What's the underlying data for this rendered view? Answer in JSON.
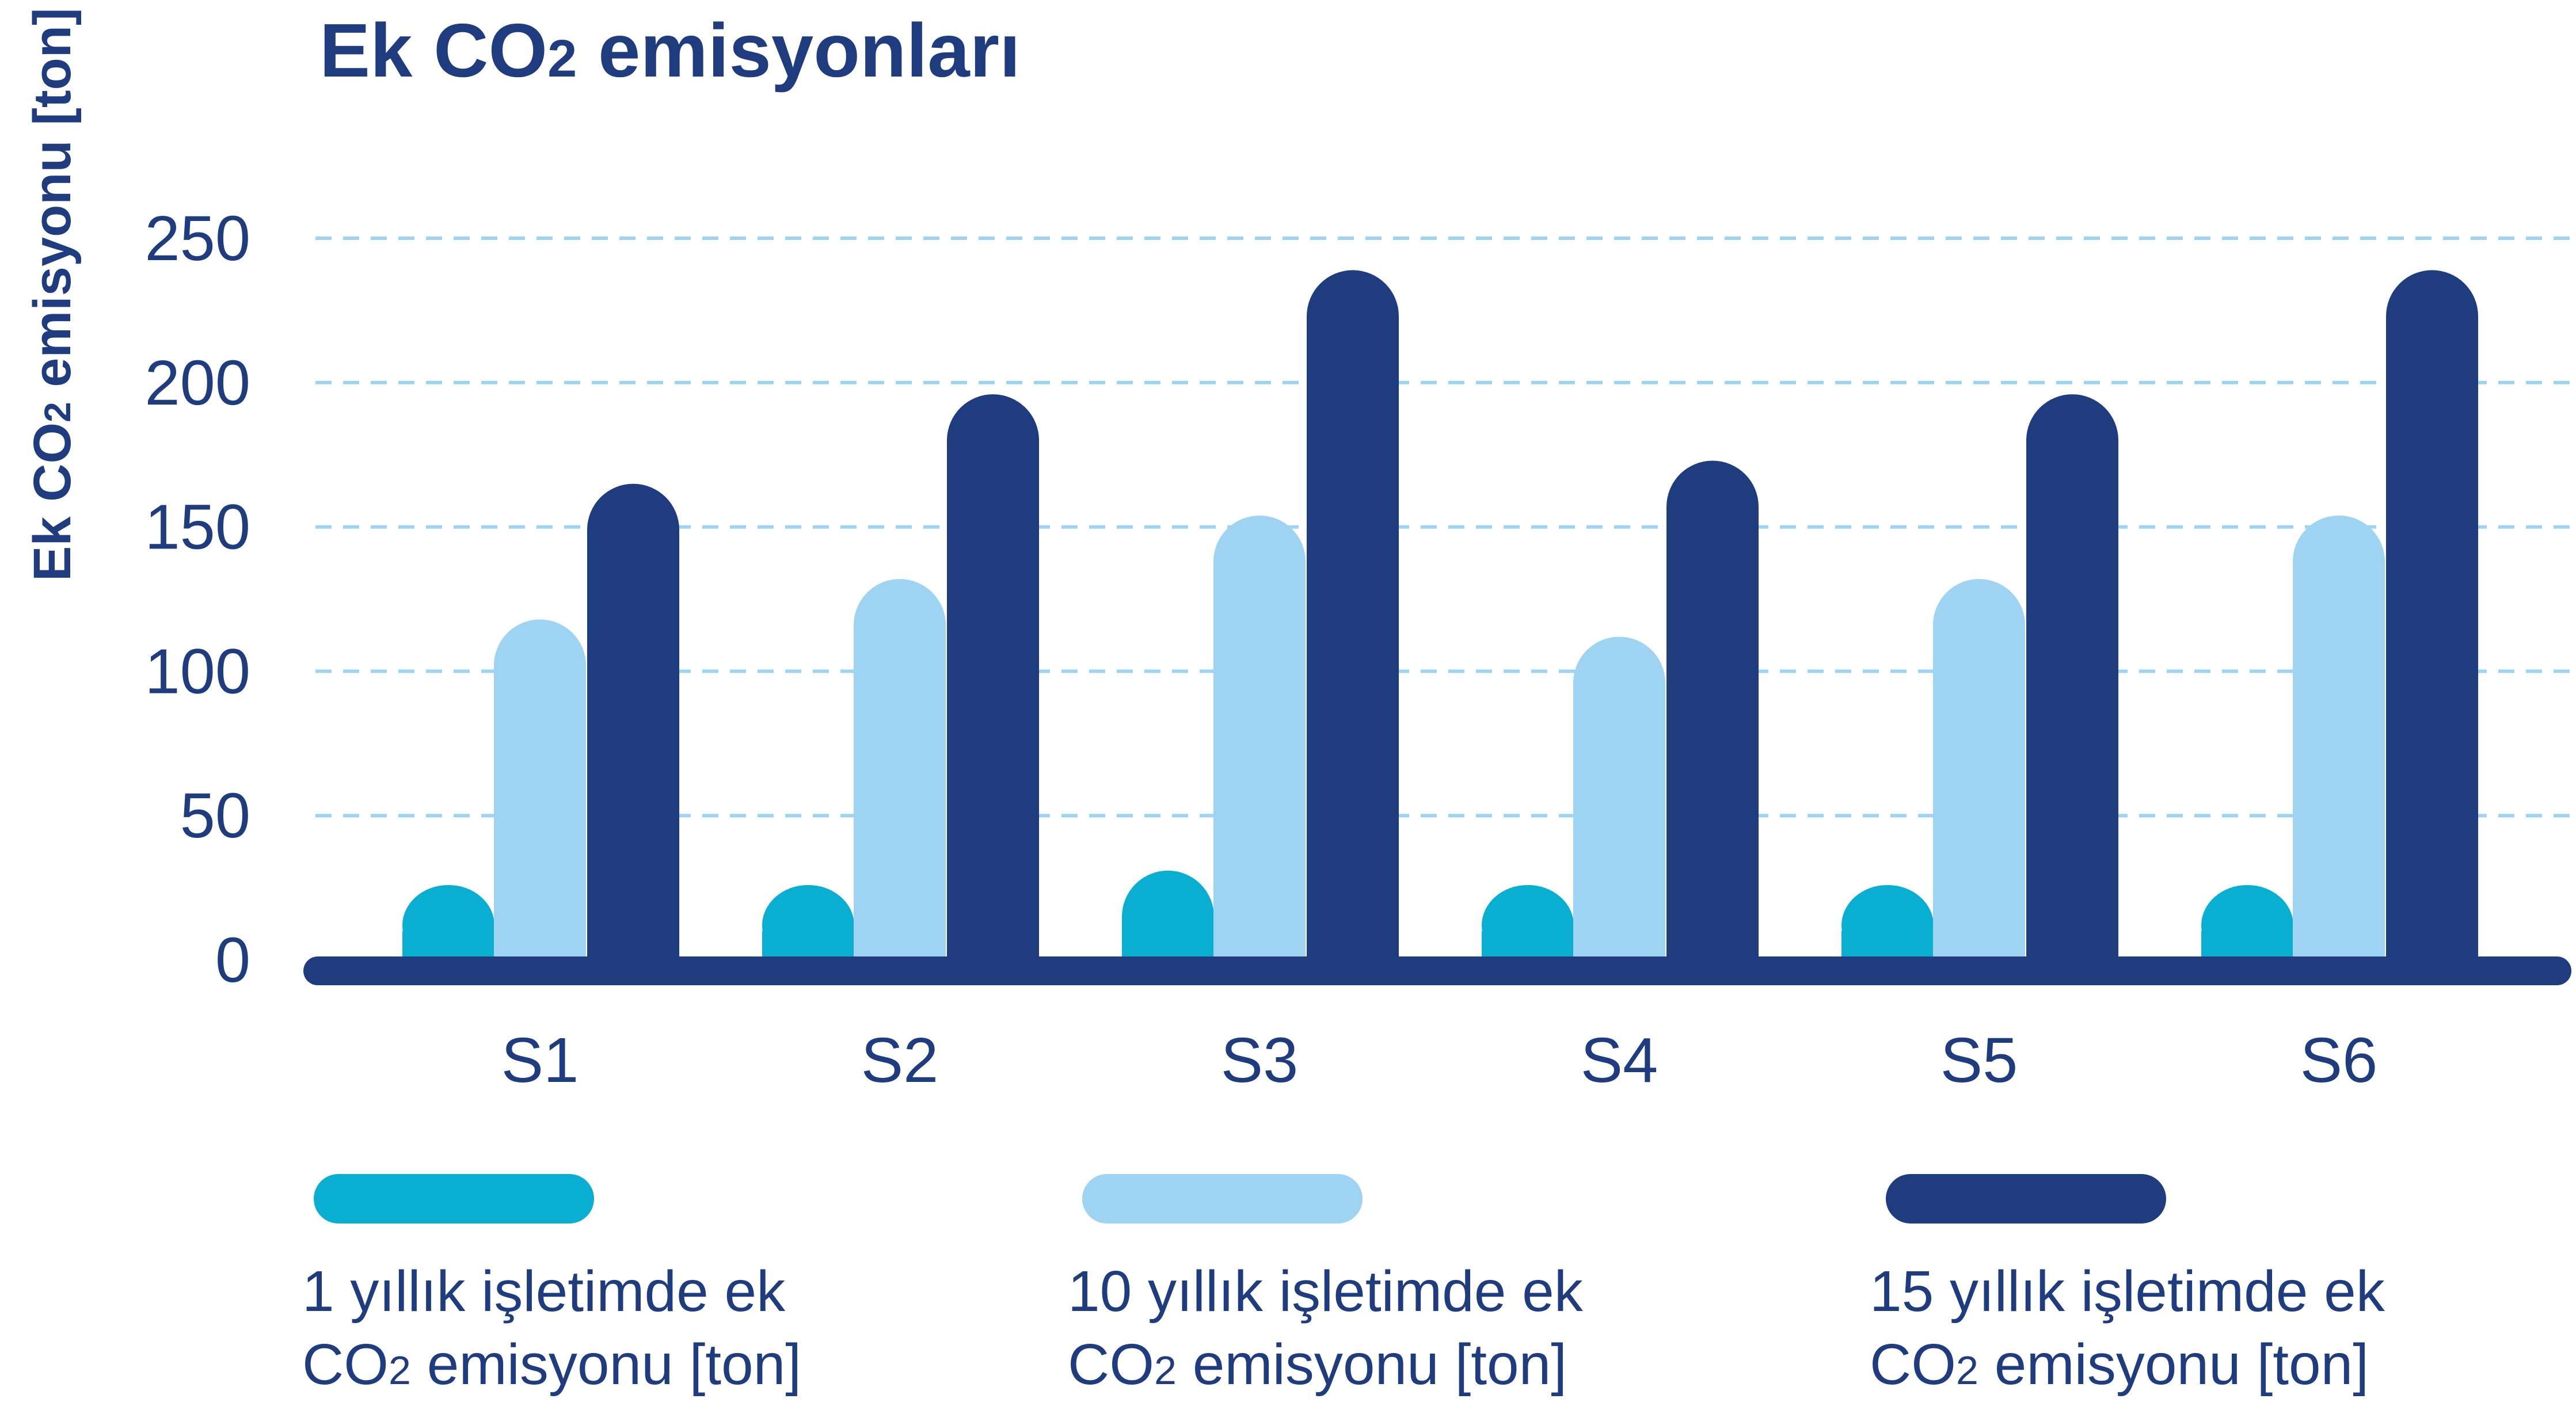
{
  "colors": {
    "series1": "#0aaed0",
    "series2": "#9fd3f2",
    "series3": "#1f3c7e",
    "grid": "#9fd3f2",
    "text": "#1f3c7e",
    "axis": "#1f3c7e"
  },
  "chart_data": {
    "type": "bar",
    "title": {
      "main": "Ek CO",
      "sub": "2",
      "tail": " emisyonları"
    },
    "ylabel": {
      "main": "Ek CO",
      "sub": "2",
      "tail": " emisyonu [ton]"
    },
    "xlabel": "",
    "ylim": [
      0,
      250
    ],
    "yticks": [
      "0",
      "50",
      "100",
      "150",
      "200",
      "250"
    ],
    "grid": true,
    "legend_position": "bottom",
    "categories": [
      "S1",
      "S2",
      "S3",
      "S4",
      "S5",
      "S6"
    ],
    "series": [
      {
        "name_line1": "1 yıllık işletimde ek",
        "name_line2_main": "CO",
        "name_line2_sub": "2",
        "name_line2_tail": " emisyonu [ton]",
        "values": [
          10,
          10,
          15,
          10,
          10,
          10
        ]
      },
      {
        "name_line1": "10 yıllık işletimde ek",
        "name_line2_main": "CO",
        "name_line2_sub": "2",
        "name_line2_tail": " emisyonu [ton]",
        "values": [
          102,
          116,
          138,
          96,
          116,
          138
        ]
      },
      {
        "name_line1": "15 yıllık işletimde ek",
        "name_line2_main": "CO",
        "name_line2_sub": "2",
        "name_line2_tail": " emisyonu [ton]",
        "values": [
          149,
          180,
          223,
          157,
          180,
          223
        ]
      }
    ]
  }
}
